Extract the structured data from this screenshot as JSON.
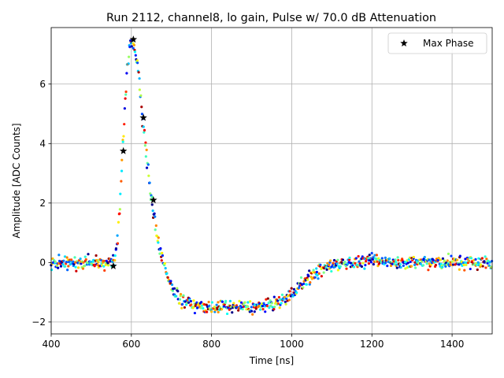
{
  "chart_data": {
    "type": "scatter",
    "title": "Run 2112, channel8, lo gain, Pulse w/ 70.0 dB Attenuation",
    "xlabel": "Time [ns]",
    "ylabel": "Amplitude [ADC Counts]",
    "xlim": [
      400,
      1500
    ],
    "ylim": [
      -2.4,
      7.9
    ],
    "xticks": [
      400,
      600,
      800,
      1000,
      1200,
      1400
    ],
    "yticks": [
      -2,
      0,
      2,
      4,
      6
    ],
    "grid": true,
    "legend": {
      "placement": "top-right",
      "entries": [
        "Max Phase"
      ]
    },
    "colormap": "jet",
    "series": [
      {
        "name": "Max Phase",
        "marker": "star",
        "color": "#000000",
        "x": [
          555,
          580,
          605,
          630,
          655
        ],
        "y": [
          -0.12,
          3.75,
          7.5,
          4.87,
          2.1
        ]
      }
    ],
    "waveform_samples": {
      "description": "colored samples",
      "x": [
        400,
        420,
        440,
        460,
        480,
        500,
        520,
        540,
        555,
        565,
        575,
        585,
        595,
        605,
        615,
        625,
        635,
        645,
        655,
        665,
        675,
        690,
        705,
        720,
        740,
        760,
        780,
        800,
        820,
        840,
        860,
        880,
        900,
        920,
        940,
        960,
        980,
        1000,
        1020,
        1040,
        1060,
        1080,
        1100,
        1150,
        1200,
        1250,
        1300,
        1350,
        1400,
        1450,
        1500
      ],
      "y": [
        0.0,
        0.0,
        0.0,
        0.0,
        0.0,
        0.0,
        0.0,
        0.0,
        0.05,
        0.6,
        2.8,
        5.6,
        7.3,
        7.4,
        6.6,
        5.3,
        3.9,
        2.7,
        1.7,
        0.9,
        0.2,
        -0.5,
        -0.95,
        -1.2,
        -1.35,
        -1.45,
        -1.5,
        -1.5,
        -1.5,
        -1.5,
        -1.5,
        -1.5,
        -1.5,
        -1.5,
        -1.45,
        -1.4,
        -1.25,
        -1.05,
        -0.8,
        -0.55,
        -0.35,
        -0.2,
        -0.1,
        0.0,
        0.05,
        0.05,
        0.0,
        0.0,
        0.0,
        0.0,
        0.0
      ]
    }
  }
}
